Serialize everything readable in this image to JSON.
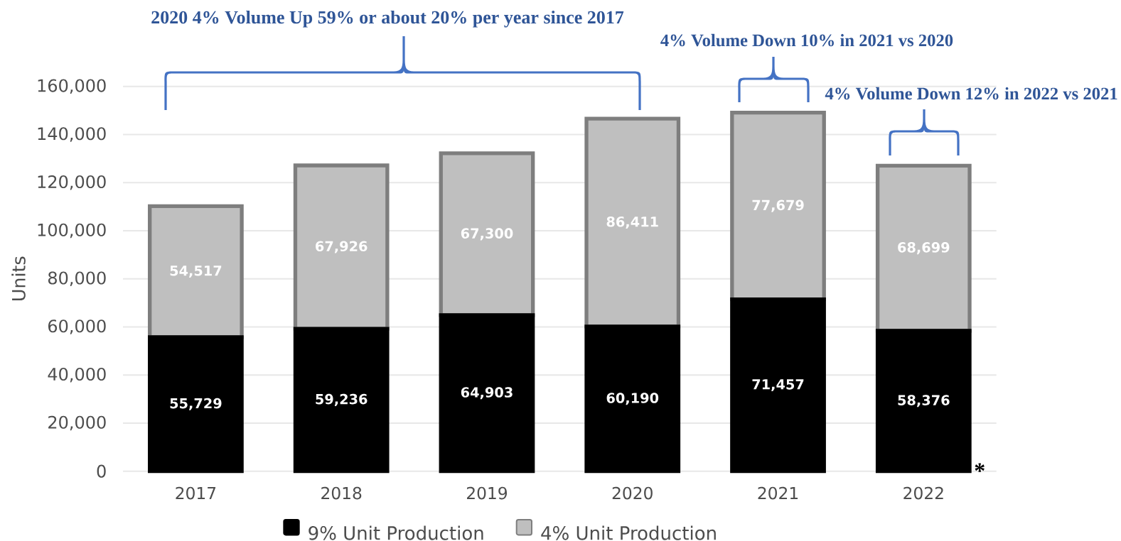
{
  "chart_data": {
    "type": "bar",
    "stacked": true,
    "categories": [
      "2017",
      "2018",
      "2019",
      "2020",
      "2021",
      "2022"
    ],
    "series": [
      {
        "name": "9% Unit Production",
        "color": "#000000",
        "values": [
          55729,
          59236,
          64903,
          60190,
          71457,
          58376
        ],
        "value_labels": [
          "55,729",
          "59,236",
          "64,903",
          "60,190",
          "71,457",
          "58,376"
        ]
      },
      {
        "name": "4% Unit Production",
        "color": "#bfbfbf",
        "values": [
          54517,
          67926,
          67300,
          86411,
          77679,
          68699
        ],
        "value_labels": [
          "54,517",
          "67,926",
          "67,300",
          "86,411",
          "77,679",
          "68,699"
        ]
      }
    ],
    "ylabel": "Units",
    "ylim": [
      0,
      160000
    ],
    "yticks": [
      0,
      {
        "value": 20000,
        "label": "20,000"
      },
      {
        "value": 40000,
        "label": "40,000"
      },
      {
        "value": 60000,
        "label": "60,000"
      },
      {
        "value": 80000,
        "label": "80,000"
      },
      {
        "value": 100000,
        "label": "100,000"
      },
      {
        "value": 120000,
        "label": "120,000"
      },
      {
        "value": 140000,
        "label": "140,000"
      },
      {
        "value": 160000,
        "label": "160,000"
      }
    ],
    "grid": "y",
    "legend": "bottom",
    "annotations": [
      "2020 4% Volume Up 59% or about 20% per year since 2017",
      "4% Volume Down 10% in 2021 vs 2020",
      "4% Volume Down 12% in 2022 vs 2021",
      {
        "text": "*",
        "x": "2022",
        "y": 0
      }
    ]
  }
}
